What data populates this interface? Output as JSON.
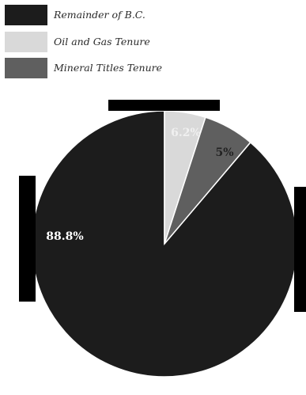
{
  "chart_data": {
    "type": "pie",
    "slices": [
      {
        "label": "Remainder of B.C.",
        "value": 88.8,
        "display": "88.8%",
        "color": "#1c1c1c",
        "text_color": "#ffffff"
      },
      {
        "label": "Oil and Gas Tenure",
        "value": 5.0,
        "display": "5%",
        "color": "#d9d9d9",
        "text_color": "#222222"
      },
      {
        "label": "Mineral Titles Tenure",
        "value": 6.2,
        "display": "6.2%",
        "color": "#5f5f5f",
        "text_color": "#f0f0f0"
      }
    ],
    "legend_position": "top-left"
  },
  "legend": {
    "items": [
      {
        "label": "Remainder of B.C.",
        "color": "#1c1c1c"
      },
      {
        "label": "Oil and Gas Tenure",
        "color": "#d9d9d9"
      },
      {
        "label": "Mineral Titles Tenure",
        "color": "#5f5f5f"
      }
    ]
  }
}
